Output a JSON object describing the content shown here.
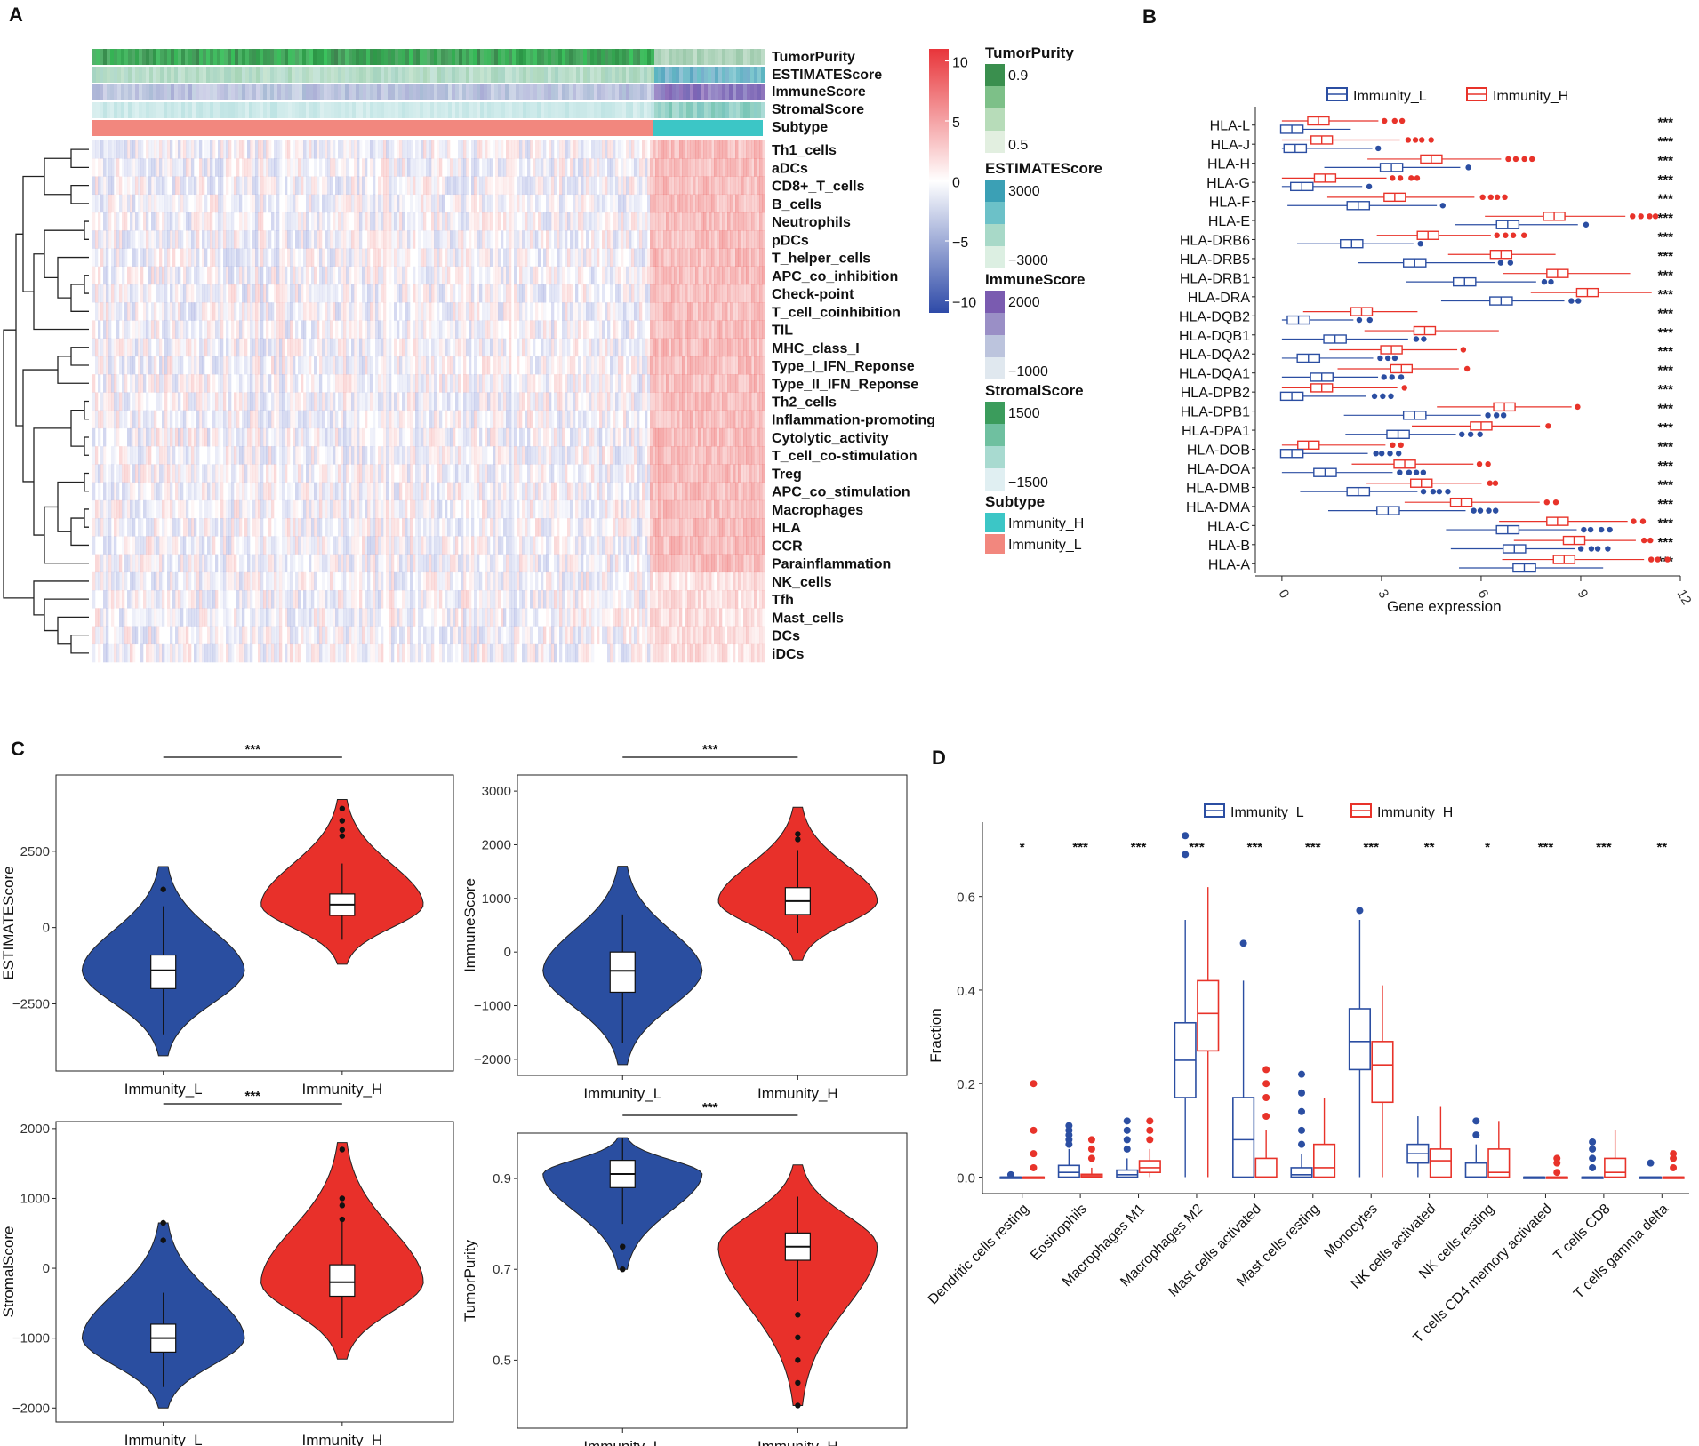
{
  "panels": [
    "A",
    "B",
    "C",
    "D"
  ],
  "colors": {
    "immunity_l": "#2b4ea2",
    "immunity_h": "#e8332a",
    "violin_l": "#2a4ea0",
    "violin_h": "#e8302a",
    "subtype_h": "#3cc6c6",
    "subtype_l": "#f2877e"
  },
  "chart_data": [
    {
      "panel": "A",
      "type": "heatmap",
      "annotation_rows": [
        "TumorPurity",
        "ESTIMATEScore",
        "ImmuneScore",
        "StromalScore",
        "Subtype"
      ],
      "rows": [
        "Th1_cells",
        "aDCs",
        "CD8+_T_cells",
        "B_cells",
        "Neutrophils",
        "pDCs",
        "T_helper_cells",
        "APC_co_inhibition",
        "Check-point",
        "T_cell_coinhibition",
        "TIL",
        "MHC_class_I",
        "Type_I_IFN_Reponse",
        "Type_II_IFN_Reponse",
        "Th2_cells",
        "Inflammation-promoting",
        "Cytolytic_activity",
        "T_cell_co-stimulation",
        "Treg",
        "APC_co_stimulation",
        "Macrophages",
        "HLA",
        "CCR",
        "Parainflammation",
        "NK_cells",
        "Tfh",
        "Mast_cells",
        "DCs",
        "iDCs"
      ],
      "color_scale": {
        "ticks": [
          "10",
          "5",
          "0",
          "−5",
          "−10"
        ],
        "range": [
          -11,
          11
        ]
      },
      "legends": [
        {
          "title": "TumorPurity",
          "labels": [
            "0.9",
            "0.5"
          ]
        },
        {
          "title": "ESTIMATEScore",
          "labels": [
            "3000",
            "−3000"
          ]
        },
        {
          "title": "ImmuneScore",
          "labels": [
            "2000",
            "−1000"
          ]
        },
        {
          "title": "StromalScore",
          "labels": [
            "1500",
            "−1500"
          ]
        },
        {
          "title": "Subtype",
          "labels": [
            "Immunity_H",
            "Immunity_L"
          ]
        }
      ]
    },
    {
      "panel": "B",
      "type": "boxplot",
      "orientation": "horizontal",
      "legend": [
        "Immunity_L",
        "Immunity_H"
      ],
      "xlabel": "Gene expression",
      "xticks": [
        "0",
        "3",
        "6",
        "9",
        "12"
      ],
      "xlim": [
        -0.8,
        12
      ],
      "genes": [
        "HLA-L",
        "HLA-J",
        "HLA-H",
        "HLA-G",
        "HLA-F",
        "HLA-E",
        "HLA-DRB6",
        "HLA-DRB5",
        "HLA-DRB1",
        "HLA-DRA",
        "HLA-DQB2",
        "HLA-DQB1",
        "HLA-DQA2",
        "HLA-DQA1",
        "HLA-DPB2",
        "HLA-DPB1",
        "HLA-DPA1",
        "HLA-DOB",
        "HLA-DOA",
        "HLA-DMB",
        "HLA-DMA",
        "HLA-C",
        "HLA-B",
        "HLA-A"
      ],
      "significance": "***",
      "low_median": [
        0.3,
        0.4,
        3.3,
        0.6,
        2.3,
        6.8,
        2.1,
        4.0,
        5.5,
        6.6,
        0.5,
        1.6,
        0.8,
        1.2,
        0.3,
        4.0,
        3.5,
        0.3,
        1.3,
        2.3,
        3.2,
        6.8,
        7.0,
        7.3
      ],
      "high_median": [
        1.1,
        1.2,
        4.5,
        1.3,
        3.4,
        8.2,
        4.4,
        6.6,
        8.3,
        9.2,
        2.4,
        4.3,
        3.3,
        3.6,
        1.2,
        6.7,
        6.0,
        0.8,
        3.7,
        4.2,
        5.4,
        8.3,
        8.8,
        8.5
      ]
    },
    {
      "panel": "C",
      "type": "violin",
      "categories": [
        "Immunity_L",
        "Immunity_H"
      ],
      "plots": [
        {
          "ylabel": "ESTIMATEScore",
          "yticks": [
            "2500",
            "0",
            "−2500"
          ],
          "tick_values": [
            2500,
            0,
            -2500
          ],
          "ylim": [
            -4700,
            5000
          ],
          "significance": "***",
          "median": [
            -1400,
            750
          ],
          "q1": [
            -2000,
            400
          ],
          "q3": [
            -900,
            1100
          ],
          "whisker": [
            [
              -3500,
              700
            ],
            [
              -400,
              2100
            ]
          ],
          "violin_range": [
            [
              -4200,
              2000
            ],
            [
              -1200,
              4200
            ]
          ],
          "outliers": [
            [
              1250
            ],
            [
              3000,
              3200,
              3500,
              3900
            ]
          ]
        },
        {
          "ylabel": "ImmuneScore",
          "yticks": [
            "3000",
            "2000",
            "1000",
            "0",
            "−1000",
            "−2000"
          ],
          "tick_values": [
            3000,
            2000,
            1000,
            0,
            -1000,
            -2000
          ],
          "ylim": [
            -2300,
            3300
          ],
          "significance": "***",
          "median": [
            -350,
            950
          ],
          "q1": [
            -750,
            700
          ],
          "q3": [
            0,
            1200
          ],
          "whisker": [
            [
              -1700,
              700
            ],
            [
              350,
              1900
            ]
          ],
          "violin_range": [
            [
              -2100,
              1600
            ],
            [
              -150,
              2700
            ]
          ],
          "outliers": [
            [],
            [
              2100,
              2200
            ]
          ]
        },
        {
          "ylabel": "StromalScore",
          "yticks": [
            "2000",
            "1000",
            "0",
            "−1000",
            "−2000"
          ],
          "tick_values": [
            2000,
            1000,
            0,
            -1000,
            -2000
          ],
          "ylim": [
            -2200,
            2100
          ],
          "significance": "***",
          "median": [
            -1000,
            -200
          ],
          "q1": [
            -1200,
            -400
          ],
          "q3": [
            -800,
            50
          ],
          "whisker": [
            [
              -1700,
              -350
            ],
            [
              -1000,
              700
            ]
          ],
          "violin_range": [
            [
              -2000,
              650
            ],
            [
              -1300,
              1800
            ]
          ],
          "outliers": [
            [
              400,
              650
            ],
            [
              700,
              900,
              1000,
              1700
            ]
          ]
        },
        {
          "ylabel": "TumorPurity",
          "yticks": [
            "0.9",
            "0.7",
            "0.5"
          ],
          "tick_values": [
            0.9,
            0.7,
            0.5
          ],
          "ylim": [
            0.35,
            1.0
          ],
          "significance": "***",
          "median": [
            0.91,
            0.75
          ],
          "q1": [
            0.88,
            0.72
          ],
          "q3": [
            0.94,
            0.78
          ],
          "whisker": [
            [
              0.8,
              0.99
            ],
            [
              0.63,
              0.86
            ]
          ],
          "violin_range": [
            [
              0.7,
              0.99
            ],
            [
              0.4,
              0.93
            ]
          ],
          "outliers": [
            [
              0.7,
              0.75
            ],
            [
              0.4,
              0.45,
              0.5,
              0.55,
              0.6
            ]
          ]
        }
      ]
    },
    {
      "panel": "D",
      "type": "boxplot",
      "legend": [
        "Immunity_L",
        "Immunity_H"
      ],
      "ylabel": "Fraction",
      "yticks": [
        "0.0",
        "0.2",
        "0.4",
        "0.6"
      ],
      "ylim": [
        -0.02,
        0.74
      ],
      "categories": [
        "Dendritic cells resting",
        "Eosinophils",
        "Macrophages M1",
        "Macrophages M2",
        "Mast cells activated",
        "Mast cells resting",
        "Monocytes",
        "NK cells activated",
        "NK cells resting",
        "T cells CD4 memory activated",
        "T cells CD8",
        "T cells gamma delta"
      ],
      "significance": [
        "*",
        "***",
        "***",
        "***",
        "***",
        "***",
        "***",
        "**",
        "*",
        "***",
        "***",
        "**"
      ],
      "low": [
        {
          "q1": 0,
          "median": 0,
          "q3": 0,
          "wmax": 0,
          "outliers": [
            0.005
          ]
        },
        {
          "q1": 0.0,
          "median": 0.01,
          "q3": 0.025,
          "wmax": 0.06,
          "outliers": [
            0.07,
            0.08,
            0.09,
            0.1,
            0.11
          ]
        },
        {
          "q1": 0.0,
          "median": 0.005,
          "q3": 0.015,
          "wmax": 0.04,
          "outliers": [
            0.06,
            0.08,
            0.1,
            0.12
          ]
        },
        {
          "q1": 0.17,
          "median": 0.25,
          "q3": 0.33,
          "wmax": 0.55,
          "outliers": [
            0.69,
            0.73
          ]
        },
        {
          "q1": 0.0,
          "median": 0.08,
          "q3": 0.17,
          "wmax": 0.42,
          "outliers": [
            0.5
          ]
        },
        {
          "q1": 0.0,
          "median": 0.005,
          "q3": 0.02,
          "wmax": 0.05,
          "outliers": [
            0.07,
            0.1,
            0.14,
            0.18,
            0.22
          ]
        },
        {
          "q1": 0.23,
          "median": 0.29,
          "q3": 0.36,
          "wmax": 0.55,
          "outliers": [
            0.57
          ]
        },
        {
          "q1": 0.03,
          "median": 0.05,
          "q3": 0.07,
          "wmax": 0.13,
          "outliers": []
        },
        {
          "q1": 0.0,
          "median": 0.0,
          "q3": 0.03,
          "wmax": 0.07,
          "outliers": [
            0.09,
            0.12
          ]
        },
        {
          "q1": 0,
          "median": 0,
          "q3": 0,
          "wmax": 0,
          "outliers": []
        },
        {
          "q1": 0.0,
          "median": 0.0,
          "q3": 0.0,
          "wmax": 0.0,
          "outliers": [
            0.02,
            0.04,
            0.06,
            0.075
          ]
        },
        {
          "q1": 0,
          "median": 0,
          "q3": 0,
          "wmax": 0,
          "outliers": [
            0.03
          ]
        }
      ],
      "high": [
        {
          "q1": 0,
          "median": 0,
          "q3": 0,
          "wmax": 0,
          "outliers": [
            0.02,
            0.05,
            0.1,
            0.2
          ]
        },
        {
          "q1": 0.0,
          "median": 0.003,
          "q3": 0.006,
          "wmax": 0.02,
          "outliers": [
            0.04,
            0.06,
            0.08
          ]
        },
        {
          "q1": 0.01,
          "median": 0.02,
          "q3": 0.035,
          "wmax": 0.06,
          "outliers": [
            0.08,
            0.1,
            0.12
          ]
        },
        {
          "q1": 0.27,
          "median": 0.35,
          "q3": 0.42,
          "wmax": 0.62,
          "outliers": []
        },
        {
          "q1": 0.0,
          "median": 0.0,
          "q3": 0.04,
          "wmax": 0.1,
          "outliers": [
            0.13,
            0.17,
            0.2,
            0.23
          ]
        },
        {
          "q1": 0.0,
          "median": 0.02,
          "q3": 0.07,
          "wmax": 0.17,
          "outliers": []
        },
        {
          "q1": 0.16,
          "median": 0.24,
          "q3": 0.29,
          "wmax": 0.41,
          "outliers": []
        },
        {
          "q1": 0.0,
          "median": 0.035,
          "q3": 0.06,
          "wmax": 0.15,
          "outliers": []
        },
        {
          "q1": 0.0,
          "median": 0.01,
          "q3": 0.06,
          "wmax": 0.12,
          "outliers": []
        },
        {
          "q1": 0,
          "median": 0,
          "q3": 0,
          "wmax": 0,
          "outliers": [
            0.01,
            0.03,
            0.04
          ]
        },
        {
          "q1": 0.0,
          "median": 0.01,
          "q3": 0.04,
          "wmax": 0.1,
          "outliers": []
        },
        {
          "q1": 0,
          "median": 0,
          "q3": 0,
          "wmax": 0,
          "outliers": [
            0.02,
            0.04,
            0.05
          ]
        }
      ]
    }
  ]
}
